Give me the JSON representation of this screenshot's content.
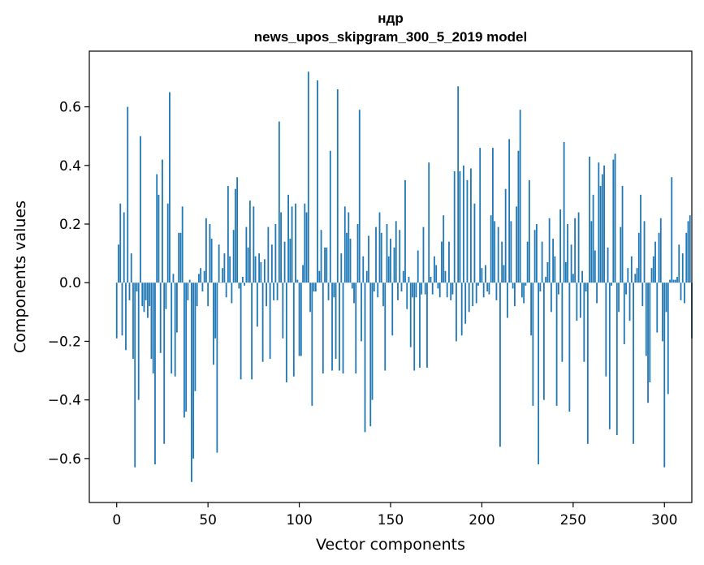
{
  "chart_data": {
    "type": "bar",
    "title": "ндр",
    "subtitle": "news_upos_skipgram_300_5_2019 model",
    "xlabel": "Vector components",
    "ylabel": "Components values",
    "xlim": [
      -15,
      315
    ],
    "ylim": [
      -0.75,
      0.79
    ],
    "x_ticks": [
      0,
      50,
      100,
      150,
      200,
      250,
      300
    ],
    "y_ticks": [
      -0.6,
      -0.4,
      -0.2,
      0.0,
      0.2,
      0.4,
      0.6
    ],
    "y_tick_labels": [
      "−0.6",
      "−0.4",
      "−0.2",
      "0.0",
      "0.2",
      "0.4",
      "0.6"
    ],
    "grid": false,
    "bar_color": "#1f77b4",
    "series": [
      {
        "values": [
          -0.19,
          0.13,
          0.27,
          -0.18,
          0.24,
          -0.23,
          0.6,
          -0.06,
          0.1,
          -0.26,
          -0.63,
          -0.03,
          -0.4,
          0.5,
          -0.08,
          -0.1,
          -0.06,
          -0.12,
          -0.08,
          -0.26,
          -0.31,
          -0.62,
          0.37,
          0.3,
          -0.24,
          0.42,
          -0.55,
          -0.09,
          0.27,
          0.65,
          -0.31,
          0.03,
          -0.32,
          -0.17,
          0.17,
          0.17,
          0.26,
          -0.46,
          -0.44,
          -0.06,
          0.01,
          -0.68,
          -0.6,
          -0.37,
          -0.08,
          0.03,
          0.05,
          -0.03,
          0.04,
          0.22,
          -0.08,
          0.2,
          0.15,
          -0.28,
          -0.19,
          -0.58,
          0.13,
          0.0,
          0.05,
          0.1,
          -0.05,
          0.33,
          0.09,
          -0.07,
          0.18,
          0.32,
          0.36,
          -0.02,
          -0.33,
          0.02,
          -0.01,
          0.19,
          0.12,
          0.28,
          -0.33,
          0.26,
          0.09,
          -0.15,
          0.1,
          0.07,
          -0.27,
          0.08,
          -0.08,
          0.19,
          -0.26,
          0.13,
          -0.06,
          0.2,
          -0.06,
          0.55,
          0.24,
          -0.19,
          0.14,
          -0.34,
          0.3,
          0.15,
          0.26,
          -0.32,
          0.27,
          0.01,
          -0.25,
          -0.25,
          0.06,
          0.27,
          0.24,
          0.72,
          -0.1,
          -0.42,
          -0.03,
          -0.03,
          0.69,
          0.04,
          0.18,
          -0.31,
          0.12,
          0.12,
          -0.06,
          0.45,
          -0.3,
          -0.05,
          -0.26,
          0.66,
          -0.3,
          0.1,
          -0.31,
          0.26,
          0.17,
          0.24,
          0.15,
          -0.02,
          -0.07,
          -0.31,
          0.2,
          0.59,
          -0.2,
          0.09,
          -0.51,
          0.04,
          0.16,
          -0.49,
          -0.4,
          -0.03,
          0.19,
          -0.05,
          0.24,
          0.17,
          -0.08,
          -0.3,
          0.2,
          0.09,
          0.15,
          -0.18,
          0.12,
          0.21,
          -0.06,
          0.18,
          -0.03,
          0.04,
          0.35,
          -0.09,
          0.02,
          -0.22,
          -0.05,
          -0.3,
          -0.05,
          0.11,
          -0.29,
          -0.04,
          0.19,
          -0.04,
          -0.29,
          0.41,
          0.02,
          -0.04,
          0.09,
          0.06,
          -0.02,
          -0.05,
          0.14,
          0.23,
          0.04,
          -0.05,
          0.14,
          -0.06,
          -0.04,
          0.38,
          -0.2,
          0.67,
          0.38,
          -0.18,
          0.4,
          -0.14,
          0.35,
          -0.1,
          0.39,
          -0.08,
          0.27,
          -0.07,
          -0.01,
          0.46,
          0.05,
          -0.05,
          0.06,
          -0.03,
          -0.04,
          0.23,
          0.46,
          0.21,
          -0.06,
          0.19,
          -0.56,
          0.14,
          0.06,
          0.32,
          -0.12,
          0.49,
          0.21,
          -0.02,
          -0.08,
          0.26,
          0.45,
          0.59,
          -0.05,
          -0.07,
          -0.01,
          0.14,
          0.35,
          -0.18,
          -0.42,
          0.18,
          0.2,
          -0.62,
          -0.03,
          0.14,
          -0.4,
          0.02,
          0.07,
          0.22,
          -0.1,
          0.15,
          0.09,
          -0.42,
          -0.04,
          0.25,
          -0.27,
          0.48,
          0.07,
          0.2,
          -0.44,
          0.13,
          0.03,
          0.22,
          -0.13,
          0.24,
          -0.12,
          0.04,
          -0.27,
          -0.03,
          -0.55,
          0.43,
          0.21,
          0.3,
          0.11,
          -0.07,
          0.41,
          0.33,
          0.37,
          0.4,
          -0.32,
          0.12,
          -0.5,
          -0.01,
          0.42,
          0.44,
          -0.52,
          -0.1,
          0.19,
          0.33,
          -0.21,
          -0.04,
          0.05,
          -0.13,
          0.09,
          -0.55,
          0.03,
          0.05,
          0.17,
          0.3,
          -0.08,
          0.21,
          -0.25,
          -0.41,
          -0.34,
          0.05,
          0.09,
          0.14,
          -0.17,
          0.17,
          0.22,
          -0.2,
          -0.63,
          -0.1,
          -0.38,
          0.01,
          0.36,
          0.01,
          0.01,
          0.02,
          0.13,
          -0.06,
          0.1,
          -0.07,
          0.17,
          0.21,
          0.23,
          -0.19
        ]
      }
    ]
  }
}
